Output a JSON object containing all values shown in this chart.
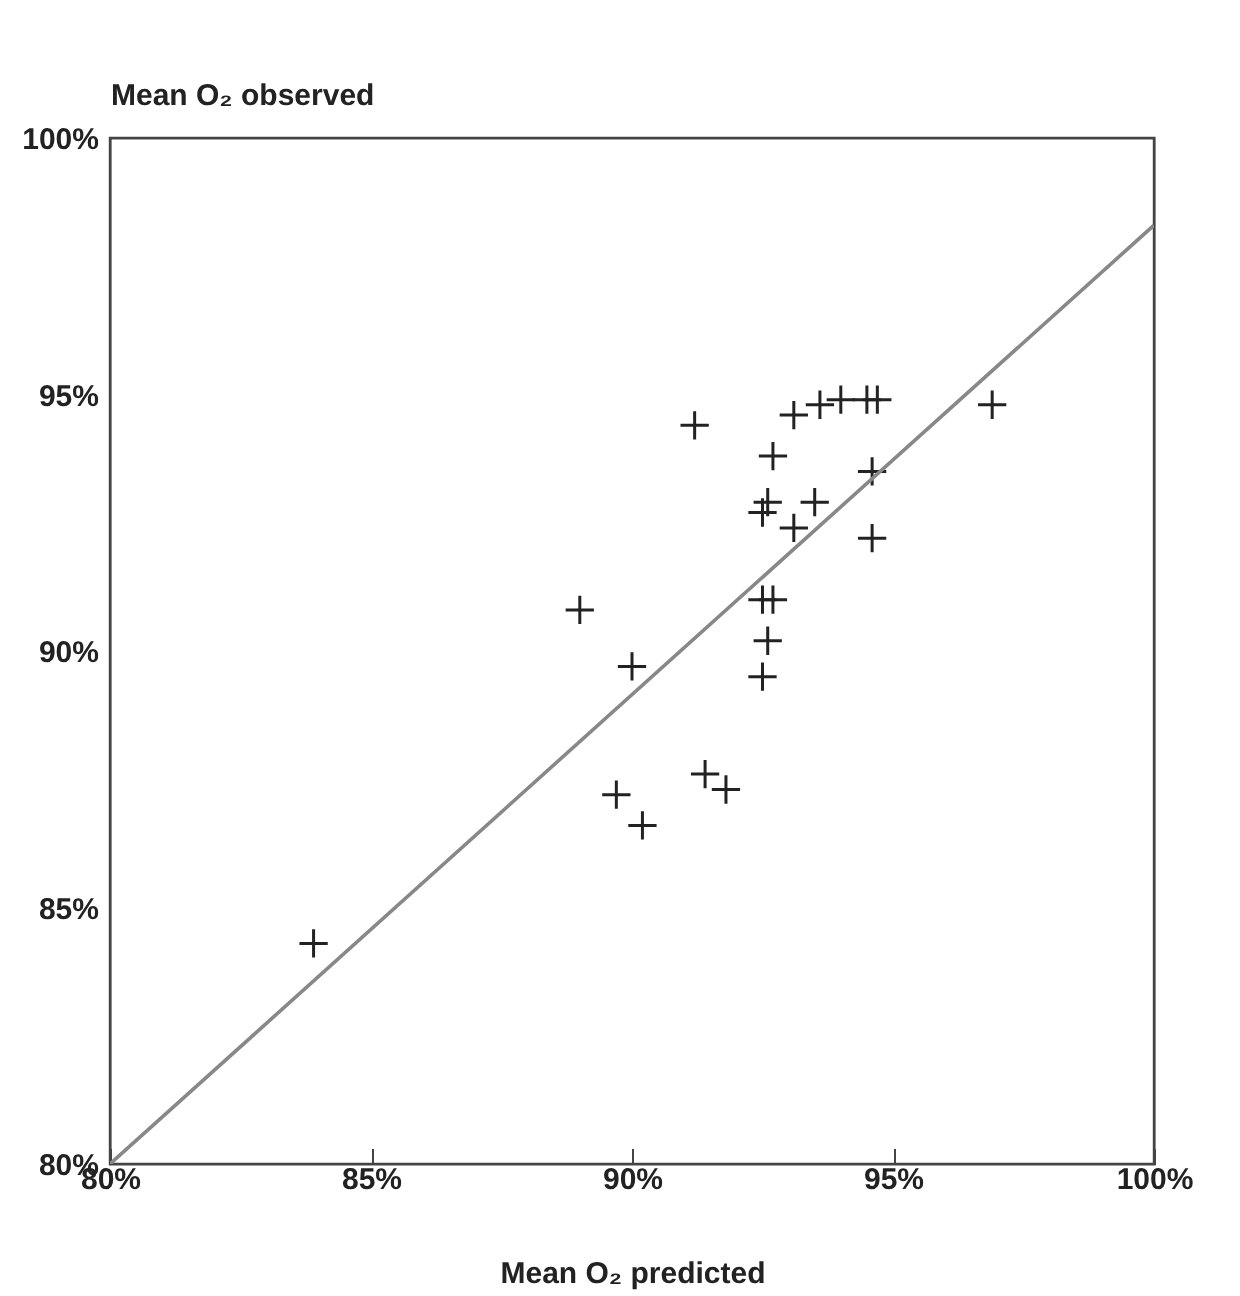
{
  "chart_data": {
    "type": "scatter",
    "xlabel": "Mean O₂ predicted",
    "ylabel": "Mean O₂ observed",
    "xlim": [
      80,
      100
    ],
    "ylim": [
      80,
      100
    ],
    "xticks": [
      {
        "value": 80,
        "label": "80%"
      },
      {
        "value": 85,
        "label": "85%"
      },
      {
        "value": 90,
        "label": "90%"
      },
      {
        "value": 95,
        "label": "95%"
      },
      {
        "value": 100,
        "label": "100%"
      }
    ],
    "yticks": [
      {
        "value": 80,
        "label": "80%"
      },
      {
        "value": 85,
        "label": "85%"
      },
      {
        "value": 90,
        "label": "90%"
      },
      {
        "value": 95,
        "label": "95%"
      },
      {
        "value": 100,
        "label": "100%"
      }
    ],
    "grid": false,
    "series": [
      {
        "color": "#222222",
        "marker": "cross",
        "x": [
          83.9,
          89.0,
          90.0,
          89.7,
          90.2,
          91.4,
          91.8,
          92.5,
          92.7,
          92.6,
          92.5,
          91.2,
          93.1,
          93.6,
          94.0,
          94.5,
          94.7,
          92.7,
          94.6,
          93.5,
          92.6,
          92.5,
          93.1,
          94.6,
          96.9
        ],
        "values": [
          84.3,
          90.8,
          89.7,
          87.2,
          86.6,
          87.6,
          87.3,
          91.0,
          91.0,
          90.2,
          89.5,
          94.4,
          94.6,
          94.8,
          94.9,
          94.9,
          94.9,
          93.8,
          93.5,
          92.9,
          92.9,
          92.7,
          92.4,
          92.2,
          94.8
        ]
      },
      {
        "type": "line",
        "color": "#888888",
        "x": [
          80,
          100
        ],
        "values": [
          80,
          98.3
        ]
      }
    ]
  }
}
